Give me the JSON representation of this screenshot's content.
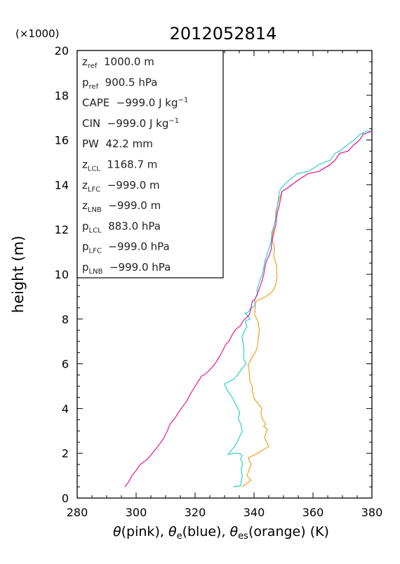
{
  "chart_data": {
    "type": "line",
    "title": "2012052814",
    "multiplier": "(×1000)",
    "ylabel": "height (m)",
    "xlabel_parts": [
      {
        "t": "θ",
        "italic": true
      },
      {
        "t": "(pink), "
      },
      {
        "t": "θ",
        "italic": true
      },
      {
        "t": "e",
        "sub": true
      },
      {
        "t": "(blue), "
      },
      {
        "t": "θ",
        "italic": true
      },
      {
        "t": "es",
        "sub": true
      },
      {
        "t": "(orange)   (K)"
      }
    ],
    "xlim": [
      280,
      380
    ],
    "ylim": [
      0,
      20
    ],
    "xticks": [
      280,
      300,
      320,
      340,
      360,
      380
    ],
    "yticks": [
      0,
      2,
      4,
      6,
      8,
      10,
      12,
      14,
      16,
      18,
      20
    ],
    "series": [
      {
        "name": "θ",
        "color": "#e5189a",
        "x": [
          296.2,
          297.3,
          298.6,
          300.1,
          301.4,
          303.5,
          305.2,
          307.3,
          309.0,
          310.4,
          311.5,
          313.3,
          315.0,
          317.0,
          318.4,
          320.0,
          321.5,
          322.2,
          323.6,
          325.5,
          327.0,
          328.2,
          329.4,
          330.6,
          331.5,
          332.6,
          333.9,
          335.4,
          336.2,
          337.3,
          338.4,
          339.0,
          339.4,
          340.2,
          340.7,
          341.5,
          342.2,
          342.8,
          343.3,
          343.7,
          344.2,
          345.0,
          345.8,
          346.1,
          346.8,
          347.4,
          347.6,
          348.0,
          348.6,
          349.5,
          351.8,
          354.8,
          358.5,
          362.0,
          365.8,
          367.5,
          369.0,
          371.8,
          374.0,
          375.8,
          377.0,
          378.0,
          380.0
        ],
        "y": [
          0.5,
          0.7,
          1.0,
          1.25,
          1.5,
          1.7,
          1.95,
          2.3,
          2.6,
          2.95,
          3.3,
          3.6,
          3.95,
          4.3,
          4.65,
          5.0,
          5.3,
          5.45,
          5.55,
          5.8,
          6.05,
          6.3,
          6.6,
          6.9,
          7.0,
          7.3,
          7.55,
          7.7,
          7.9,
          8.05,
          8.2,
          8.5,
          8.8,
          8.85,
          9.0,
          9.25,
          9.5,
          9.75,
          10.0,
          10.3,
          10.6,
          10.8,
          11.1,
          11.5,
          11.9,
          12.2,
          12.5,
          12.8,
          13.1,
          13.7,
          13.9,
          14.2,
          14.5,
          14.6,
          14.9,
          15.1,
          15.4,
          15.5,
          15.8,
          16.0,
          16.25,
          16.3,
          16.4
        ]
      },
      {
        "name": "θe",
        "color": "#2ecfcf",
        "x": [
          333.0,
          335.4,
          336.0,
          335.6,
          336.2,
          335.4,
          336.0,
          334.9,
          333.0,
          331.2,
          333.4,
          334.6,
          336.0,
          335.5,
          334.6,
          335.2,
          334.2,
          333.5,
          332.6,
          331.0,
          330.0,
          331.4,
          333.0,
          334.4,
          336.0,
          337.3,
          336.4,
          336.6,
          336.3,
          335.9,
          336.9,
          337.6,
          337.0,
          338.6,
          337.6,
          336.8,
          337.9,
          338.7,
          340.3,
          340.2,
          341.2,
          341.0,
          342.0,
          342.8,
          343.3,
          343.7,
          344.2,
          345.0,
          345.8,
          346.1,
          346.8,
          347.4,
          347.6,
          348.0,
          348.6,
          349.5,
          351.8,
          354.8,
          358.5,
          362.0,
          365.8,
          367.5,
          369.0,
          371.8,
          374.0,
          375.8,
          377.0,
          378.0,
          380.0
        ],
        "y": [
          0.5,
          0.55,
          1.0,
          1.3,
          1.55,
          1.75,
          1.9,
          2.0,
          2.0,
          1.95,
          2.3,
          2.6,
          3.0,
          3.3,
          3.55,
          3.8,
          4.1,
          4.25,
          4.5,
          4.8,
          5.1,
          5.2,
          5.3,
          5.5,
          5.8,
          6.0,
          6.25,
          6.6,
          6.9,
          7.2,
          7.5,
          7.65,
          7.9,
          8.0,
          8.2,
          8.25,
          8.3,
          8.45,
          8.6,
          8.85,
          9.1,
          9.3,
          9.75,
          10.0,
          10.3,
          10.6,
          10.8,
          11.1,
          11.5,
          11.9,
          12.2,
          12.5,
          12.8,
          13.1,
          13.7,
          13.9,
          14.2,
          14.5,
          14.6,
          14.9,
          15.1,
          15.4,
          15.5,
          15.8,
          16.0,
          16.25,
          16.3,
          16.4,
          16.4
        ]
      },
      {
        "name": "θes",
        "color": "#f0a020",
        "x": [
          336.0,
          339.0,
          337.6,
          339.0,
          338.0,
          340.5,
          342.4,
          345.0,
          344.3,
          343.6,
          344.5,
          343.2,
          344.0,
          343.0,
          342.3,
          342.7,
          341.2,
          340.0,
          339.4,
          339.4,
          338.6,
          338.4,
          338.0,
          339.4,
          340.6,
          341.2,
          341.4,
          341.8,
          341.3,
          340.2,
          340.4,
          340.4,
          341.2,
          342.4,
          344.0,
          345.5,
          346.3,
          347.3,
          347.8,
          347.6,
          346.7,
          347.0,
          346.0,
          346.6,
          347.3,
          347.4,
          348.0,
          348.6,
          349.5,
          351.8,
          354.8,
          358.5,
          362.0,
          365.8,
          367.5,
          369.0,
          371.8,
          374.0,
          375.8,
          377.0,
          378.0,
          380.0
        ],
        "y": [
          0.5,
          0.8,
          1.0,
          1.5,
          1.8,
          1.95,
          2.1,
          2.3,
          2.5,
          2.7,
          3.1,
          3.2,
          3.3,
          3.5,
          3.8,
          4.0,
          4.25,
          4.45,
          4.8,
          5.0,
          5.2,
          5.6,
          5.95,
          6.3,
          6.55,
          6.8,
          7.1,
          7.5,
          7.9,
          8.2,
          8.5,
          8.7,
          8.85,
          8.9,
          9.0,
          9.15,
          9.25,
          9.5,
          9.9,
          10.4,
          10.8,
          11.2,
          11.6,
          12.0,
          12.5,
          12.8,
          13.1,
          13.4,
          13.7,
          13.9,
          14.2,
          14.5,
          14.6,
          14.9,
          15.1,
          15.4,
          15.5,
          15.8,
          16.0,
          16.25,
          16.3,
          16.4
        ]
      }
    ],
    "info_box": [
      {
        "sym": "z",
        "sub": "ref",
        "value": "1000.0 m"
      },
      {
        "sym": "p",
        "sub": "ref",
        "value": "900.5 hPa"
      },
      {
        "sym": "CAPE",
        "sub": "",
        "value": "−999.0 J kg",
        "sup": "−1"
      },
      {
        "sym": "CIN",
        "sub": "",
        "value": "−999.0 J kg",
        "sup": "−1"
      },
      {
        "sym": "PW",
        "sub": "",
        "value": "42.2 mm"
      },
      {
        "sym": "z",
        "sub": "LCL",
        "value": "1168.7 m"
      },
      {
        "sym": "z",
        "sub": "LFC",
        "value": "−999.0 m"
      },
      {
        "sym": "z",
        "sub": "LNB",
        "value": "−999.0 m"
      },
      {
        "sym": "p",
        "sub": "LCL",
        "value": "883.0 hPa"
      },
      {
        "sym": "p",
        "sub": "LFC",
        "value": "−999.0 hPa"
      },
      {
        "sym": "p",
        "sub": "LNB",
        "value": "−999.0 hPa"
      }
    ]
  }
}
